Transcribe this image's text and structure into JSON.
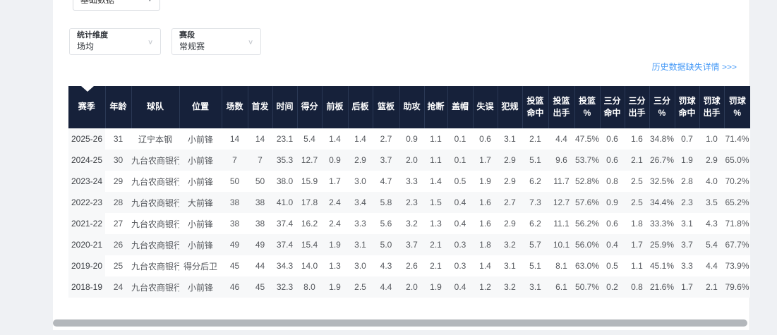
{
  "page": {
    "background_color": "#eff1f4",
    "card_color": "#ffffff"
  },
  "filters": {
    "category_select": {
      "value": "基础数据"
    },
    "dimension_select": {
      "label": "统计维度",
      "value": "场均"
    },
    "stage_select": {
      "label": "赛段",
      "value": "常规赛"
    }
  },
  "history_link": {
    "text": "历史数据缺失详情 >>>",
    "color": "#4a9cf7"
  },
  "table": {
    "header_bg": "#16213a",
    "header_text_color": "#ffffff",
    "stripe_color": "#f7f8f9",
    "columns": [
      "赛季",
      "年龄",
      "球队",
      "位置",
      "场数",
      "首发",
      "时间",
      "得分",
      "前板",
      "后板",
      "篮板",
      "助攻",
      "抢断",
      "盖帽",
      "失误",
      "犯规",
      "投篮\n命中",
      "投篮\n出手",
      "投篮\n%",
      "三分\n命中",
      "三分\n出手",
      "三分\n%",
      "罚球\n命中",
      "罚球\n出手",
      "罚球\n%"
    ],
    "rows": [
      [
        "2025-26",
        "31",
        "辽宁本钢",
        "小前锋",
        "14",
        "14",
        "23.1",
        "5.4",
        "1.4",
        "1.4",
        "2.7",
        "0.9",
        "1.1",
        "0.1",
        "0.6",
        "3.1",
        "2.1",
        "4.4",
        "47.5%",
        "0.6",
        "1.6",
        "34.8%",
        "0.7",
        "1.0",
        "71.4%"
      ],
      [
        "2024-25",
        "30",
        "九台农商银行",
        "小前锋",
        "7",
        "7",
        "35.3",
        "12.7",
        "0.9",
        "2.9",
        "3.7",
        "2.0",
        "1.1",
        "0.1",
        "1.7",
        "2.9",
        "5.1",
        "9.6",
        "53.7%",
        "0.6",
        "2.1",
        "26.7%",
        "1.9",
        "2.9",
        "65.0%"
      ],
      [
        "2023-24",
        "29",
        "九台农商银行",
        "小前锋",
        "50",
        "50",
        "38.0",
        "15.9",
        "1.7",
        "3.0",
        "4.7",
        "3.3",
        "1.4",
        "0.5",
        "1.9",
        "2.9",
        "6.2",
        "11.7",
        "52.8%",
        "0.8",
        "2.5",
        "32.5%",
        "2.8",
        "4.0",
        "70.2%"
      ],
      [
        "2022-23",
        "28",
        "九台农商银行",
        "大前锋",
        "38",
        "38",
        "41.0",
        "17.8",
        "2.4",
        "3.4",
        "5.8",
        "2.3",
        "1.5",
        "0.4",
        "1.6",
        "2.7",
        "7.3",
        "12.7",
        "57.6%",
        "0.9",
        "2.5",
        "34.4%",
        "2.3",
        "3.5",
        "65.2%"
      ],
      [
        "2021-22",
        "27",
        "九台农商银行",
        "小前锋",
        "38",
        "38",
        "37.4",
        "16.2",
        "2.4",
        "3.3",
        "5.6",
        "3.2",
        "1.3",
        "0.4",
        "1.6",
        "2.9",
        "6.2",
        "11.1",
        "56.2%",
        "0.6",
        "1.8",
        "33.3%",
        "3.1",
        "4.3",
        "71.8%"
      ],
      [
        "2020-21",
        "26",
        "九台农商银行",
        "小前锋",
        "49",
        "49",
        "37.4",
        "15.4",
        "1.9",
        "3.1",
        "5.0",
        "3.7",
        "2.1",
        "0.3",
        "1.8",
        "3.2",
        "5.7",
        "10.1",
        "56.0%",
        "0.4",
        "1.7",
        "25.9%",
        "3.7",
        "5.4",
        "67.7%"
      ],
      [
        "2019-20",
        "25",
        "九台农商银行",
        "得分后卫",
        "45",
        "44",
        "34.3",
        "14.0",
        "1.3",
        "3.0",
        "4.3",
        "2.6",
        "2.1",
        "0.3",
        "1.4",
        "3.1",
        "5.1",
        "8.1",
        "63.0%",
        "0.5",
        "1.1",
        "45.1%",
        "3.3",
        "4.4",
        "73.9%"
      ],
      [
        "2018-19",
        "24",
        "九台农商银行",
        "小前锋",
        "46",
        "45",
        "32.3",
        "8.0",
        "1.9",
        "2.5",
        "4.4",
        "2.0",
        "1.9",
        "0.4",
        "1.2",
        "3.2",
        "3.1",
        "6.1",
        "50.7%",
        "0.2",
        "0.8",
        "21.6%",
        "1.7",
        "2.1",
        "79.6%"
      ]
    ]
  }
}
